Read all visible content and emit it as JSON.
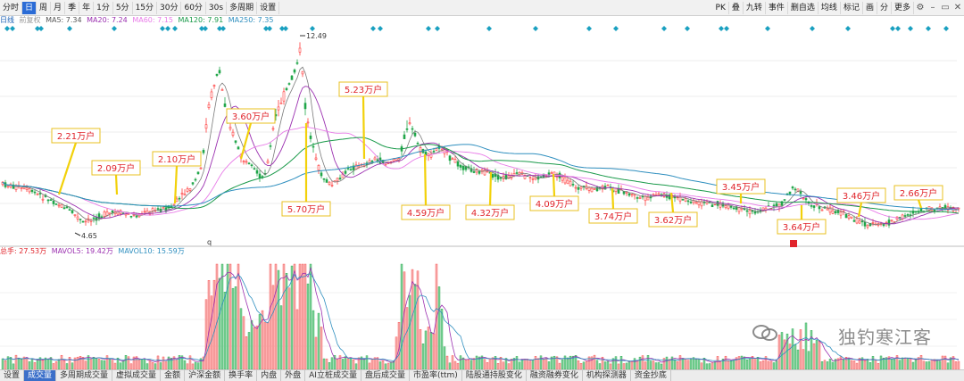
{
  "toolbar": {
    "periods": [
      "分时",
      "日",
      "周",
      "月",
      "季",
      "年",
      "1分",
      "5分",
      "15分",
      "30分",
      "60分",
      "30s",
      "多周期",
      "设置"
    ],
    "active_period": "日",
    "right_buttons": [
      "PK",
      "叠",
      "九转",
      "事件",
      "删自选",
      "均线",
      "标记",
      "画",
      "分",
      "更多"
    ]
  },
  "ma_legend": {
    "label": "日线",
    "sub": "前复权",
    "ma5": "MA5: 7.34",
    "ma20": "MA20: 7.24",
    "ma60": "MA60: 7.15",
    "ma120": "MA120: 7.91",
    "ma250": "MA250: 7.35"
  },
  "vol_legend": {
    "total": "总手: 27.53万",
    "mavol5": "MAVOL5: 19.42万",
    "mavol10": "MAVOL10: 15.59万"
  },
  "price_marks": {
    "high": "12.49",
    "low": "4.65",
    "q_marker": "q"
  },
  "annotations": [
    {
      "text": "2.21万户"
    },
    {
      "text": "2.09万户"
    },
    {
      "text": "2.10万户"
    },
    {
      "text": "3.60万户"
    },
    {
      "text": "5.70万户"
    },
    {
      "text": "5.23万户"
    },
    {
      "text": "4.59万户"
    },
    {
      "text": "4.32万户"
    },
    {
      "text": "4.09万户"
    },
    {
      "text": "3.74万户"
    },
    {
      "text": "3.62万户"
    },
    {
      "text": "3.45万户"
    },
    {
      "text": "3.64万户"
    },
    {
      "text": "3.46万户"
    },
    {
      "text": "2.66万户"
    }
  ],
  "bottom_tabs": [
    "设置",
    "成交量",
    "多周期成交量",
    "虚拟成交量",
    "金额",
    "沪深金额",
    "换手率",
    "内盘",
    "外盘",
    "AI立桩成交量",
    "盘后成交量",
    "市盈率(ttm)",
    "陆股通持股变化",
    "融资融券变化",
    "机构探测器",
    "资金抄底"
  ],
  "active_tab": "成交量",
  "watermark": "独钓寒江客",
  "colors": {
    "up": "#ff3b3b",
    "down": "#21a64a",
    "ma5": "#7a7a7a",
    "ma20": "#9b30b0",
    "ma60": "#e87be8",
    "ma120": "#1a9a4a",
    "ma250": "#2f8fbf",
    "annotation_border": "#e8c020",
    "annotation_text": "#e0242b",
    "marker": "#1aa0c0"
  }
}
